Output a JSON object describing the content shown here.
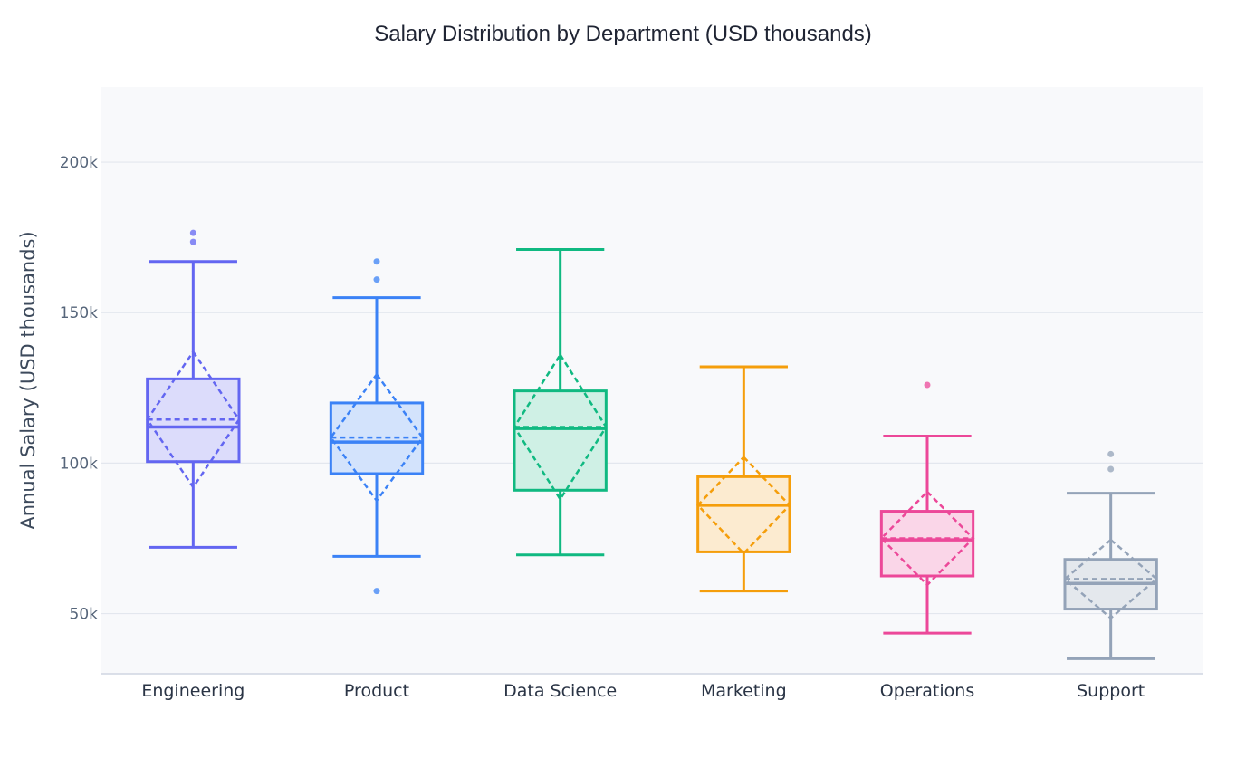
{
  "chart_data": {
    "type": "box",
    "title": "Salary Distribution by Department  (USD thousands)",
    "xlabel": "",
    "ylabel": "Annual Salary (USD thousands)",
    "ylim": [
      30,
      225
    ],
    "yticks": [
      50,
      100,
      150,
      200
    ],
    "ytick_labels": [
      "50k",
      "100k",
      "150k",
      "200k"
    ],
    "grid": true,
    "show_mean_and_sd": true,
    "categories": [
      "Engineering",
      "Product",
      "Data Science",
      "Marketing",
      "Operations",
      "Support"
    ],
    "series": [
      {
        "category": "Engineering",
        "color": "#6366f1",
        "fill": "#dcdcfb",
        "whisker_low": 72,
        "q1": 100.5,
        "median": 112,
        "q3": 128,
        "whisker_high": 167,
        "mean": 114.5,
        "sd": 22.5,
        "outliers": [
          173.5,
          176.5
        ]
      },
      {
        "category": "Product",
        "color": "#3b82f6",
        "fill": "#d3e3fc",
        "whisker_low": 69,
        "q1": 96.5,
        "median": 107,
        "q3": 120,
        "whisker_high": 155,
        "mean": 108.5,
        "sd": 21,
        "outliers": [
          57.5,
          161,
          167
        ]
      },
      {
        "category": "Data Science",
        "color": "#10b981",
        "fill": "#cff0e5",
        "whisker_low": 69.5,
        "q1": 91,
        "median": 111.5,
        "q3": 124,
        "whisker_high": 171,
        "mean": 112,
        "sd": 24,
        "outliers": []
      },
      {
        "category": "Marketing",
        "color": "#f59e0b",
        "fill": "#fcebd0",
        "whisker_low": 57.5,
        "q1": 70.5,
        "median": 86,
        "q3": 95.5,
        "whisker_high": 132,
        "mean": 86,
        "sd": 16,
        "outliers": []
      },
      {
        "category": "Operations",
        "color": "#ec4899",
        "fill": "#fad6e8",
        "whisker_low": 43.5,
        "q1": 62.5,
        "median": 74.5,
        "q3": 84,
        "whisker_high": 109,
        "mean": 75,
        "sd": 15.5,
        "outliers": [
          126
        ]
      },
      {
        "category": "Support",
        "color": "#94a3b8",
        "fill": "#e4e8ed",
        "whisker_low": 35,
        "q1": 51.5,
        "median": 60,
        "q3": 68,
        "whisker_high": 90,
        "mean": 61.5,
        "sd": 13,
        "outliers": [
          98,
          103
        ]
      }
    ]
  }
}
